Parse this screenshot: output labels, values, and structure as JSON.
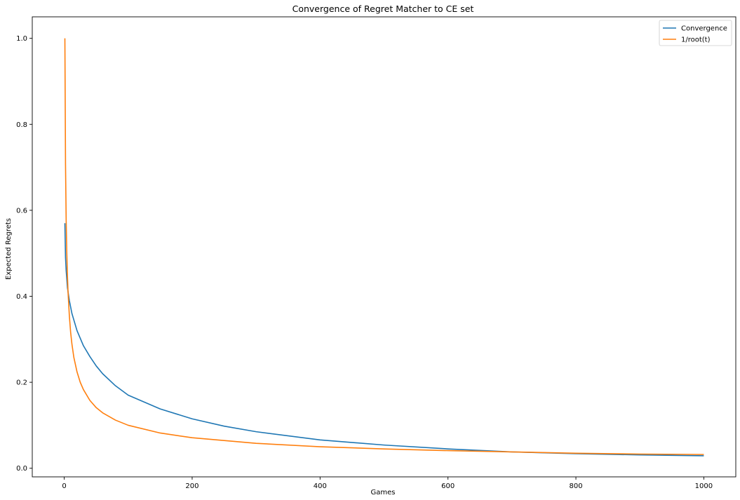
{
  "chart_data": {
    "type": "line",
    "title": "Convergence of Regret Matcher to CE set",
    "xlabel": "Games",
    "ylabel": "Expected Regrets",
    "xlim": [
      -50,
      1050
    ],
    "ylim": [
      -0.02,
      1.05
    ],
    "xticks": [
      0,
      200,
      400,
      600,
      800,
      1000
    ],
    "yticks": [
      0.0,
      0.2,
      0.4,
      0.6,
      0.8,
      1.0
    ],
    "xtick_labels": [
      "0",
      "200",
      "400",
      "600",
      "800",
      "1000"
    ],
    "ytick_labels": [
      "0.0",
      "0.2",
      "0.4",
      "0.6",
      "0.8",
      "1.0"
    ],
    "grid": false,
    "legend_position": "top-right",
    "series": [
      {
        "name": "Convergence",
        "color": "#1f77b4",
        "x": [
          1,
          2,
          3,
          5,
          8,
          12,
          20,
          30,
          40,
          50,
          60,
          80,
          100,
          150,
          200,
          250,
          300,
          400,
          500,
          600,
          700,
          800,
          900,
          1000
        ],
        "y": [
          0.57,
          0.49,
          0.46,
          0.42,
          0.39,
          0.36,
          0.32,
          0.285,
          0.26,
          0.238,
          0.22,
          0.192,
          0.17,
          0.138,
          0.115,
          0.098,
          0.085,
          0.066,
          0.054,
          0.045,
          0.038,
          0.034,
          0.031,
          0.029
        ]
      },
      {
        "name": "1/root(t)",
        "color": "#ff7f0e",
        "x": [
          1,
          2,
          3,
          4,
          5,
          6,
          8,
          10,
          12,
          15,
          20,
          25,
          30,
          40,
          50,
          60,
          80,
          100,
          150,
          200,
          300,
          400,
          500,
          600,
          700,
          800,
          900,
          1000
        ],
        "y": [
          1.0,
          0.707,
          0.577,
          0.5,
          0.447,
          0.408,
          0.354,
          0.316,
          0.289,
          0.258,
          0.224,
          0.2,
          0.183,
          0.158,
          0.141,
          0.129,
          0.112,
          0.1,
          0.082,
          0.071,
          0.058,
          0.05,
          0.045,
          0.041,
          0.038,
          0.035,
          0.033,
          0.032
        ]
      }
    ]
  }
}
